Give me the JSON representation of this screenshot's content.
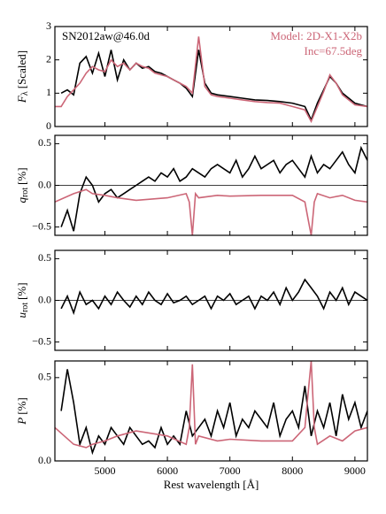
{
  "chart_data": [
    {
      "type": "line",
      "title": "SN2012aw@46.0d",
      "annotations": [
        "Model: 2D-X1-X2b",
        "Inc=67.5deg"
      ],
      "ylabel": {
        "main": "F",
        "sub": "λ",
        "unit": "[Scaled]"
      },
      "xlim": [
        4200,
        9200
      ],
      "xticks": [
        5000,
        6000,
        7000,
        8000,
        9000
      ],
      "ylim": [
        0,
        3
      ],
      "yticks": [
        0,
        1,
        2,
        3
      ],
      "series": [
        {
          "name": "SN2012aw@46.0d",
          "color": "#000000",
          "x": [
            4300,
            4400,
            4500,
            4600,
            4700,
            4800,
            4900,
            5000,
            5100,
            5200,
            5300,
            5400,
            5500,
            5600,
            5700,
            5800,
            5900,
            6000,
            6100,
            6200,
            6300,
            6400,
            6500,
            6600,
            6700,
            6800,
            7000,
            7200,
            7400,
            7600,
            7800,
            8000,
            8200,
            8300,
            8400,
            8500,
            8600,
            8700,
            8800,
            9000,
            9200
          ],
          "values": [
            1.0,
            1.1,
            0.95,
            1.9,
            2.1,
            1.6,
            2.2,
            1.5,
            2.3,
            1.4,
            2.0,
            1.7,
            1.9,
            1.75,
            1.8,
            1.65,
            1.6,
            1.5,
            1.4,
            1.3,
            1.15,
            0.9,
            2.3,
            1.3,
            1.0,
            0.95,
            0.9,
            0.85,
            0.8,
            0.78,
            0.75,
            0.7,
            0.6,
            0.2,
            0.7,
            1.1,
            1.5,
            1.3,
            1.0,
            0.7,
            0.6
          ]
        },
        {
          "name": "Model: 2D-X1-X2b",
          "color": "#cc6677",
          "x": [
            4200,
            4300,
            4400,
            4500,
            4600,
            4700,
            4800,
            4900,
            5000,
            5100,
            5200,
            5300,
            5400,
            5500,
            5600,
            5700,
            5800,
            5900,
            6000,
            6100,
            6200,
            6300,
            6400,
            6500,
            6600,
            6700,
            6800,
            7000,
            7200,
            7400,
            7600,
            7800,
            8000,
            8200,
            8300,
            8400,
            8500,
            8600,
            8700,
            8800,
            9000,
            9200
          ],
          "values": [
            0.6,
            0.6,
            0.9,
            1.1,
            1.3,
            1.6,
            1.8,
            1.7,
            1.65,
            2.0,
            1.8,
            1.9,
            1.7,
            1.9,
            1.8,
            1.75,
            1.6,
            1.55,
            1.5,
            1.4,
            1.3,
            1.2,
            1.0,
            2.7,
            1.2,
            0.95,
            0.9,
            0.85,
            0.8,
            0.75,
            0.72,
            0.7,
            0.6,
            0.5,
            0.15,
            0.6,
            1.05,
            1.55,
            1.3,
            0.95,
            0.65,
            0.6
          ]
        }
      ]
    },
    {
      "type": "line",
      "ylabel": {
        "main": "q",
        "sub": "rot",
        "unit": "[%]"
      },
      "xlim": [
        4200,
        9200
      ],
      "xticks": [
        5000,
        6000,
        7000,
        8000,
        9000
      ],
      "ylim": [
        -0.6,
        0.6
      ],
      "yticks": [
        {
          "value": -0.5,
          "label": "−0.5"
        },
        {
          "value": 0,
          "label": "0.0"
        },
        0.5
      ],
      "hline": 0,
      "series": [
        {
          "color": "#000000",
          "x": [
            4300,
            4400,
            4500,
            4600,
            4700,
            4800,
            4900,
            5000,
            5100,
            5200,
            5300,
            5400,
            5500,
            5600,
            5700,
            5800,
            5900,
            6000,
            6100,
            6200,
            6300,
            6400,
            6500,
            6600,
            6700,
            6800,
            6900,
            7000,
            7100,
            7200,
            7300,
            7400,
            7500,
            7600,
            7700,
            7800,
            7900,
            8000,
            8100,
            8200,
            8300,
            8400,
            8500,
            8600,
            8700,
            8800,
            8900,
            9000,
            9100,
            9200
          ],
          "values": [
            -0.5,
            -0.3,
            -0.55,
            -0.1,
            0.1,
            0.0,
            -0.2,
            -0.1,
            -0.05,
            -0.15,
            -0.1,
            -0.05,
            0.0,
            0.05,
            0.1,
            0.05,
            0.15,
            0.1,
            0.2,
            0.05,
            0.1,
            0.2,
            0.15,
            0.1,
            0.2,
            0.25,
            0.2,
            0.15,
            0.3,
            0.1,
            0.2,
            0.35,
            0.2,
            0.25,
            0.3,
            0.15,
            0.25,
            0.3,
            0.2,
            0.1,
            0.35,
            0.15,
            0.25,
            0.2,
            0.3,
            0.4,
            0.25,
            0.15,
            0.45,
            0.3
          ]
        },
        {
          "color": "#cc6677",
          "x": [
            4200,
            4500,
            4700,
            4800,
            5000,
            5200,
            5500,
            6000,
            6300,
            6350,
            6400,
            6450,
            6500,
            6800,
            7000,
            7500,
            8000,
            8200,
            8250,
            8300,
            8350,
            8400,
            8600,
            8800,
            9000,
            9200
          ],
          "values": [
            -0.2,
            -0.1,
            -0.05,
            -0.1,
            -0.12,
            -0.15,
            -0.18,
            -0.15,
            -0.1,
            -0.2,
            -0.6,
            -0.1,
            -0.15,
            -0.12,
            -0.13,
            -0.12,
            -0.12,
            -0.2,
            -0.4,
            -0.6,
            -0.2,
            -0.1,
            -0.15,
            -0.12,
            -0.18,
            -0.2
          ]
        }
      ]
    },
    {
      "type": "line",
      "ylabel": {
        "main": "u",
        "sub": "rot",
        "unit": "[%]"
      },
      "xlim": [
        4200,
        9200
      ],
      "xticks": [
        5000,
        6000,
        7000,
        8000,
        9000
      ],
      "ylim": [
        -0.6,
        0.6
      ],
      "yticks": [
        {
          "value": -0.5,
          "label": "−0.5"
        },
        {
          "value": 0,
          "label": "0.0"
        },
        0.5
      ],
      "hline": 0,
      "series": [
        {
          "color": "#000000",
          "x": [
            4300,
            4400,
            4500,
            4600,
            4700,
            4800,
            4900,
            5000,
            5100,
            5200,
            5300,
            5400,
            5500,
            5600,
            5700,
            5800,
            5900,
            6000,
            6100,
            6200,
            6300,
            6400,
            6500,
            6600,
            6700,
            6800,
            6900,
            7000,
            7100,
            7200,
            7300,
            7400,
            7500,
            7600,
            7700,
            7800,
            7900,
            8000,
            8100,
            8200,
            8300,
            8400,
            8500,
            8600,
            8700,
            8800,
            8900,
            9000,
            9100,
            9200
          ],
          "values": [
            -0.1,
            0.05,
            -0.15,
            0.1,
            -0.05,
            0.0,
            -0.1,
            0.05,
            -0.05,
            0.1,
            0.0,
            -0.08,
            0.05,
            -0.05,
            0.1,
            0.0,
            -0.05,
            0.08,
            -0.03,
            0.0,
            0.05,
            -0.05,
            0.0,
            0.05,
            -0.1,
            0.05,
            0.0,
            0.08,
            -0.05,
            0.0,
            0.05,
            -0.1,
            0.05,
            0.0,
            0.1,
            -0.05,
            0.15,
            0.0,
            0.1,
            0.25,
            0.15,
            0.05,
            -0.1,
            0.1,
            0.0,
            0.15,
            -0.05,
            0.1,
            0.05,
            0.0
          ]
        }
      ]
    },
    {
      "type": "line",
      "ylabel": {
        "main": "P",
        "unit": "[%]"
      },
      "xlabel": "Rest wavelength [Å]",
      "xlim": [
        4200,
        9200
      ],
      "xticks": [
        5000,
        6000,
        7000,
        8000,
        9000
      ],
      "ylim": [
        0,
        0.6
      ],
      "yticks": [
        {
          "value": 0,
          "label": "0.0"
        },
        0.5
      ],
      "series": [
        {
          "color": "#000000",
          "x": [
            4300,
            4400,
            4500,
            4600,
            4700,
            4800,
            4900,
            5000,
            5100,
            5200,
            5300,
            5400,
            5500,
            5600,
            5700,
            5800,
            5900,
            6000,
            6100,
            6200,
            6300,
            6400,
            6500,
            6600,
            6700,
            6800,
            6900,
            7000,
            7100,
            7200,
            7300,
            7400,
            7500,
            7600,
            7700,
            7800,
            7900,
            8000,
            8100,
            8200,
            8300,
            8400,
            8500,
            8600,
            8700,
            8800,
            8900,
            9000,
            9100,
            9200
          ],
          "values": [
            0.3,
            0.55,
            0.35,
            0.1,
            0.2,
            0.05,
            0.15,
            0.1,
            0.2,
            0.15,
            0.1,
            0.2,
            0.15,
            0.1,
            0.12,
            0.08,
            0.2,
            0.1,
            0.15,
            0.1,
            0.3,
            0.15,
            0.2,
            0.25,
            0.15,
            0.3,
            0.2,
            0.35,
            0.15,
            0.25,
            0.2,
            0.3,
            0.25,
            0.2,
            0.35,
            0.15,
            0.25,
            0.3,
            0.2,
            0.45,
            0.15,
            0.3,
            0.2,
            0.35,
            0.15,
            0.4,
            0.25,
            0.35,
            0.2,
            0.3
          ]
        },
        {
          "color": "#cc6677",
          "x": [
            4200,
            4500,
            4700,
            4800,
            5000,
            5200,
            5500,
            6000,
            6300,
            6350,
            6400,
            6450,
            6500,
            6800,
            7000,
            7500,
            8000,
            8200,
            8250,
            8300,
            8350,
            8400,
            8600,
            8800,
            9000,
            9200
          ],
          "values": [
            0.2,
            0.1,
            0.08,
            0.1,
            0.12,
            0.15,
            0.18,
            0.15,
            0.1,
            0.2,
            0.58,
            0.1,
            0.15,
            0.12,
            0.13,
            0.12,
            0.12,
            0.2,
            0.4,
            0.6,
            0.2,
            0.1,
            0.15,
            0.12,
            0.18,
            0.2
          ]
        }
      ]
    }
  ]
}
